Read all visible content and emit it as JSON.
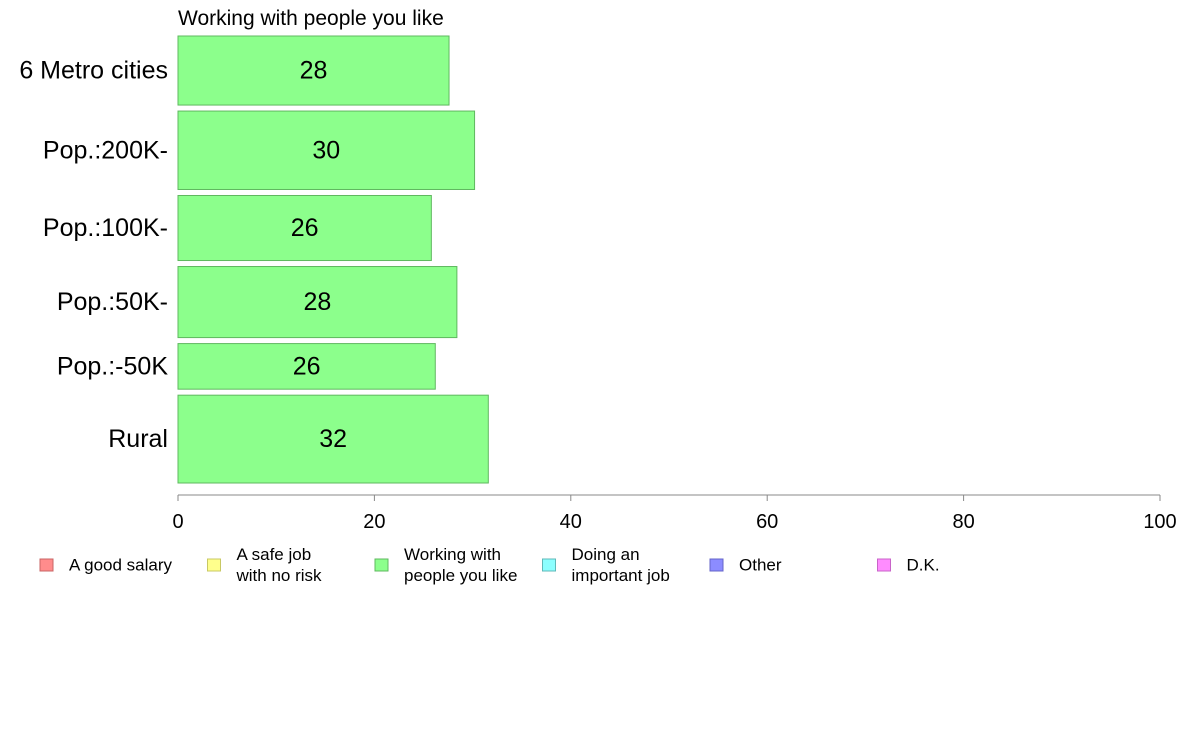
{
  "chart_data": {
    "type": "bar",
    "orientation": "horizontal",
    "title": "Working with people you like",
    "categories": [
      "6 Metro cities",
      "Pop.:200K-",
      "Pop.:100K-",
      "Pop.:50K-",
      "Pop.:-50K",
      "Rural"
    ],
    "category_weights": [
      1.03,
      1.17,
      0.97,
      1.06,
      0.68,
      1.31
    ],
    "series": [
      {
        "name": "Working with people you like",
        "values": [
          27.6,
          30.2,
          25.8,
          28.4,
          26.2,
          31.6
        ],
        "labels": [
          "28",
          "30",
          "26",
          "28",
          "26",
          "32"
        ],
        "color": "#8cff8c",
        "stroke": "#5fb85f"
      }
    ],
    "xlim": [
      0,
      100
    ],
    "xticks": [
      "0",
      "20",
      "40",
      "60",
      "80",
      "100"
    ],
    "xlabel": "",
    "ylabel": "",
    "grid": false,
    "legend_position": "bottom",
    "legend": [
      {
        "label_lines": [
          "A good salary"
        ],
        "color": "#ff8c8c",
        "stroke": "#c86464"
      },
      {
        "label_lines": [
          "A safe job",
          "with no risk"
        ],
        "color": "#ffff8c",
        "stroke": "#c8c864"
      },
      {
        "label_lines": [
          "Working with",
          "people you like"
        ],
        "color": "#8cff8c",
        "stroke": "#5fb85f"
      },
      {
        "label_lines": [
          "Doing an",
          "important job"
        ],
        "color": "#8cffff",
        "stroke": "#5fb8b8"
      },
      {
        "label_lines": [
          "Other"
        ],
        "color": "#8c8cff",
        "stroke": "#6464c8"
      },
      {
        "label_lines": [
          "D.K."
        ],
        "color": "#ff8cff",
        "stroke": "#c864c8"
      }
    ]
  }
}
